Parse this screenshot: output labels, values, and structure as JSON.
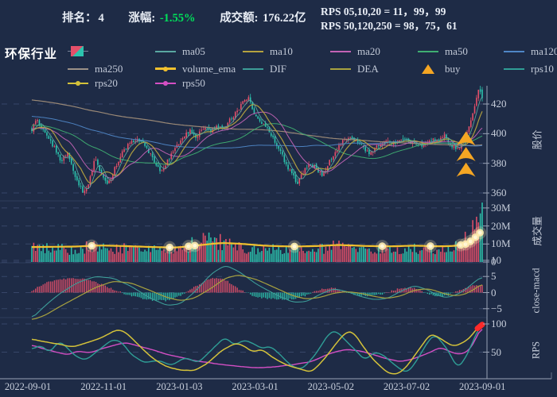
{
  "title": "环保行业",
  "header": {
    "rank_label": "排名：",
    "rank_value": "4",
    "change_label": "涨幅: ",
    "change_value": "-1.55%",
    "change_color": "#00e05a",
    "turnover_label": "成交额: ",
    "turnover_value": "176.22亿",
    "rps_line1": "RPS 05,10,20 = 11，99，99",
    "rps_line2": "RPS 50,120,250 = 98，75，61"
  },
  "legend": {
    "items": [
      {
        "id": "candle",
        "label": "",
        "type": "candle",
        "color": "#e4506a",
        "row": 0,
        "col": 0
      },
      {
        "id": "ma05",
        "label": "ma05",
        "type": "line",
        "color": "#5aa8a2",
        "row": 0,
        "col": 1
      },
      {
        "id": "ma10",
        "label": "ma10",
        "type": "line",
        "color": "#b5a23f",
        "row": 0,
        "col": 2
      },
      {
        "id": "ma20",
        "label": "ma20",
        "type": "line",
        "color": "#c263b5",
        "row": 0,
        "col": 3
      },
      {
        "id": "ma50",
        "label": "ma50",
        "type": "line",
        "color": "#3fae72",
        "row": 0,
        "col": 4
      },
      {
        "id": "ma120",
        "label": "ma120",
        "type": "line",
        "color": "#4f86c6",
        "row": 0,
        "col": 5
      },
      {
        "id": "ma250",
        "label": "ma250",
        "type": "line",
        "color": "#9b9188",
        "row": 1,
        "col": 0
      },
      {
        "id": "volume_ema",
        "label": "volume_ema",
        "type": "line-bold-dot",
        "color": "#f2c12e",
        "row": 1,
        "col": 1
      },
      {
        "id": "DIF",
        "label": "DIF",
        "type": "line",
        "color": "#3d9d98",
        "row": 1,
        "col": 2
      },
      {
        "id": "DEA",
        "label": "DEA",
        "type": "line",
        "color": "#a8a23f",
        "row": 1,
        "col": 3
      },
      {
        "id": "buy",
        "label": "buy",
        "type": "triangle",
        "color": "#f5a623",
        "row": 1,
        "col": 4
      },
      {
        "id": "rps10",
        "label": "rps10",
        "type": "line",
        "color": "#2f9e96",
        "row": 1,
        "col": 5
      },
      {
        "id": "rps20",
        "label": "rps20",
        "type": "line-dot",
        "color": "#d4c23a",
        "row": 2,
        "col": 0
      },
      {
        "id": "rps50",
        "label": "rps50",
        "type": "line-dot",
        "color": "#d44fc4",
        "row": 2,
        "col": 1
      }
    ]
  },
  "chart_data": {
    "type": "candlestick-multi-panel",
    "x_ticks": [
      "2022-09-01",
      "2022-11-01",
      "2023-01-03",
      "2023-03-01",
      "2023-05-02",
      "2023-07-02",
      "2023-09-01"
    ],
    "num_candles": 240,
    "panels": [
      {
        "id": "price",
        "ylabel": "股价",
        "ticks": [
          {
            "label": "420",
            "value": 420
          },
          {
            "label": "400",
            "value": 400
          },
          {
            "label": "380",
            "value": 380
          },
          {
            "label": "360",
            "value": 360
          }
        ]
      },
      {
        "id": "volume",
        "ylabel": "成交量",
        "ticks": [
          {
            "label": "30M",
            "value": 30
          },
          {
            "label": "20M",
            "value": 20
          },
          {
            "label": "10M",
            "value": 10
          },
          {
            "label": "0",
            "value": 0
          }
        ]
      },
      {
        "id": "macd",
        "ylabel": "close-macd",
        "ticks": [
          {
            "label": "10",
            "value": 10
          },
          {
            "label": "5",
            "value": 5
          },
          {
            "label": "0",
            "value": 0
          },
          {
            "label": "−5",
            "value": -5
          }
        ]
      },
      {
        "id": "rps",
        "ylabel": "RPS",
        "ticks": [
          {
            "label": "100",
            "value": 100
          },
          {
            "label": "50",
            "value": 50
          }
        ]
      }
    ],
    "close_keypoints": [
      [
        0,
        403
      ],
      [
        0.012,
        409
      ],
      [
        0.03,
        400
      ],
      [
        0.05,
        391
      ],
      [
        0.065,
        381
      ],
      [
        0.08,
        387
      ],
      [
        0.095,
        373
      ],
      [
        0.115,
        359
      ],
      [
        0.125,
        364
      ],
      [
        0.14,
        383
      ],
      [
        0.155,
        372
      ],
      [
        0.17,
        366
      ],
      [
        0.185,
        377
      ],
      [
        0.2,
        387
      ],
      [
        0.22,
        394
      ],
      [
        0.235,
        397
      ],
      [
        0.25,
        392
      ],
      [
        0.265,
        385
      ],
      [
        0.285,
        374
      ],
      [
        0.3,
        381
      ],
      [
        0.32,
        391
      ],
      [
        0.335,
        397
      ],
      [
        0.35,
        402
      ],
      [
        0.365,
        398
      ],
      [
        0.38,
        404
      ],
      [
        0.395,
        401
      ],
      [
        0.41,
        405
      ],
      [
        0.425,
        403
      ],
      [
        0.44,
        409
      ],
      [
        0.455,
        415
      ],
      [
        0.47,
        421
      ],
      [
        0.48,
        424
      ],
      [
        0.49,
        417
      ],
      [
        0.5,
        411
      ],
      [
        0.52,
        405
      ],
      [
        0.535,
        398
      ],
      [
        0.55,
        389
      ],
      [
        0.565,
        379
      ],
      [
        0.58,
        371
      ],
      [
        0.59,
        367
      ],
      [
        0.6,
        373
      ],
      [
        0.615,
        380
      ],
      [
        0.63,
        377
      ],
      [
        0.645,
        371
      ],
      [
        0.66,
        381
      ],
      [
        0.675,
        389
      ],
      [
        0.69,
        395
      ],
      [
        0.705,
        399
      ],
      [
        0.72,
        395
      ],
      [
        0.735,
        391
      ],
      [
        0.75,
        387
      ],
      [
        0.765,
        391
      ],
      [
        0.78,
        395
      ],
      [
        0.8,
        393
      ],
      [
        0.82,
        397
      ],
      [
        0.84,
        395
      ],
      [
        0.855,
        391
      ],
      [
        0.87,
        393
      ],
      [
        0.885,
        397
      ],
      [
        0.9,
        395
      ],
      [
        0.915,
        399
      ],
      [
        0.93,
        393
      ],
      [
        0.945,
        389
      ],
      [
        0.955,
        393
      ],
      [
        0.965,
        399
      ],
      [
        0.975,
        409
      ],
      [
        0.985,
        421
      ],
      [
        0.993,
        431
      ],
      [
        1,
        424
      ]
    ],
    "volume_keypoints": [
      [
        0,
        8
      ],
      [
        0.05,
        7.5
      ],
      [
        0.1,
        7
      ],
      [
        0.13,
        9
      ],
      [
        0.15,
        8
      ],
      [
        0.2,
        7.5
      ],
      [
        0.25,
        7
      ],
      [
        0.3,
        6.5
      ],
      [
        0.34,
        8
      ],
      [
        0.37,
        12
      ],
      [
        0.4,
        13
      ],
      [
        0.43,
        10
      ],
      [
        0.46,
        8
      ],
      [
        0.5,
        7
      ],
      [
        0.55,
        7.5
      ],
      [
        0.6,
        8
      ],
      [
        0.63,
        7
      ],
      [
        0.66,
        8.5
      ],
      [
        0.68,
        9
      ],
      [
        0.72,
        7.5
      ],
      [
        0.76,
        7
      ],
      [
        0.8,
        8
      ],
      [
        0.84,
        7.5
      ],
      [
        0.87,
        8
      ],
      [
        0.9,
        7
      ],
      [
        0.93,
        8
      ],
      [
        0.95,
        9
      ],
      [
        0.97,
        14
      ],
      [
        0.985,
        22
      ],
      [
        1,
        26
      ]
    ],
    "volume_ema_keypoints": [
      [
        0,
        8.3
      ],
      [
        0.1,
        8.6
      ],
      [
        0.15,
        9.2
      ],
      [
        0.2,
        8.9
      ],
      [
        0.27,
        8.3
      ],
      [
        0.32,
        8
      ],
      [
        0.37,
        9.3
      ],
      [
        0.42,
        10.6
      ],
      [
        0.46,
        10.2
      ],
      [
        0.52,
        9
      ],
      [
        0.58,
        8.6
      ],
      [
        0.64,
        8.9
      ],
      [
        0.68,
        9.5
      ],
      [
        0.74,
        8.9
      ],
      [
        0.8,
        8.7
      ],
      [
        0.85,
        9.1
      ],
      [
        0.9,
        8.7
      ],
      [
        0.94,
        8.9
      ],
      [
        0.965,
        10
      ],
      [
        0.98,
        12.5
      ],
      [
        1,
        17.5
      ]
    ],
    "volume_glow_t": [
      0.133,
      0.306,
      0.348,
      0.362,
      0.583,
      0.778,
      0.885,
      0.952,
      0.963,
      0.974,
      0.985,
      0.995
    ],
    "dif_keypoints": [
      [
        0,
        -8
      ],
      [
        0.03,
        -4
      ],
      [
        0.06,
        -0.5
      ],
      [
        0.1,
        3
      ],
      [
        0.14,
        5
      ],
      [
        0.18,
        4.5
      ],
      [
        0.22,
        2
      ],
      [
        0.26,
        -1.5
      ],
      [
        0.3,
        -4
      ],
      [
        0.33,
        -3.5
      ],
      [
        0.36,
        0
      ],
      [
        0.4,
        6
      ],
      [
        0.43,
        8.5
      ],
      [
        0.46,
        6.5
      ],
      [
        0.5,
        2.5
      ],
      [
        0.54,
        -0.5
      ],
      [
        0.58,
        -3
      ],
      [
        0.61,
        -2.8
      ],
      [
        0.64,
        -0.5
      ],
      [
        0.67,
        1.2
      ],
      [
        0.7,
        0.3
      ],
      [
        0.73,
        -1.2
      ],
      [
        0.76,
        -2.2
      ],
      [
        0.79,
        -1.8
      ],
      [
        0.82,
        0.5
      ],
      [
        0.85,
        2.2
      ],
      [
        0.88,
        0.8
      ],
      [
        0.9,
        -0.8
      ],
      [
        0.92,
        -1.6
      ],
      [
        0.94,
        -0.8
      ],
      [
        0.96,
        0.6
      ],
      [
        0.98,
        3
      ],
      [
        1,
        5
      ]
    ],
    "dea_keypoints": [
      [
        0,
        -8.5
      ],
      [
        0.03,
        -7
      ],
      [
        0.06,
        -4.5
      ],
      [
        0.1,
        -1.5
      ],
      [
        0.14,
        1.5
      ],
      [
        0.18,
        3.5
      ],
      [
        0.22,
        3
      ],
      [
        0.26,
        0.8
      ],
      [
        0.3,
        -1.5
      ],
      [
        0.33,
        -2.5
      ],
      [
        0.36,
        -1.8
      ],
      [
        0.4,
        1.5
      ],
      [
        0.43,
        4.5
      ],
      [
        0.46,
        5.5
      ],
      [
        0.5,
        4
      ],
      [
        0.54,
        1.5
      ],
      [
        0.58,
        -1
      ],
      [
        0.61,
        -2
      ],
      [
        0.64,
        -1.5
      ],
      [
        0.67,
        -0.2
      ],
      [
        0.7,
        0.3
      ],
      [
        0.73,
        -0.2
      ],
      [
        0.76,
        -1.2
      ],
      [
        0.79,
        -1.8
      ],
      [
        0.82,
        -1
      ],
      [
        0.85,
        0.8
      ],
      [
        0.88,
        1.2
      ],
      [
        0.9,
        0.4
      ],
      [
        0.92,
        -0.5
      ],
      [
        0.94,
        -1
      ],
      [
        0.96,
        -0.6
      ],
      [
        0.98,
        0.8
      ],
      [
        1,
        2.8
      ]
    ],
    "rps10_keypoints": [
      [
        0,
        55
      ],
      [
        0.02,
        63
      ],
      [
        0.04,
        48
      ],
      [
        0.06,
        71
      ],
      [
        0.08,
        56
      ],
      [
        0.1,
        41
      ],
      [
        0.12,
        36
      ],
      [
        0.15,
        55
      ],
      [
        0.18,
        73
      ],
      [
        0.2,
        68
      ],
      [
        0.22,
        46
      ],
      [
        0.25,
        31
      ],
      [
        0.28,
        36
      ],
      [
        0.31,
        26
      ],
      [
        0.34,
        41
      ],
      [
        0.37,
        31
      ],
      [
        0.4,
        55
      ],
      [
        0.43,
        77
      ],
      [
        0.45,
        62
      ],
      [
        0.47,
        72
      ],
      [
        0.49,
        66
      ],
      [
        0.51,
        56
      ],
      [
        0.53,
        61
      ],
      [
        0.55,
        46
      ],
      [
        0.575,
        26
      ],
      [
        0.6,
        19
      ],
      [
        0.63,
        46
      ],
      [
        0.66,
        84
      ],
      [
        0.675,
        88
      ],
      [
        0.69,
        76
      ],
      [
        0.715,
        56
      ],
      [
        0.74,
        36
      ],
      [
        0.76,
        50
      ],
      [
        0.78,
        45
      ],
      [
        0.8,
        31
      ],
      [
        0.82,
        18
      ],
      [
        0.835,
        14
      ],
      [
        0.855,
        35
      ],
      [
        0.88,
        70
      ],
      [
        0.895,
        82
      ],
      [
        0.915,
        64
      ],
      [
        0.93,
        45
      ],
      [
        0.945,
        21
      ],
      [
        0.96,
        36
      ],
      [
        0.975,
        60
      ],
      [
        0.99,
        90
      ],
      [
        1,
        99
      ]
    ],
    "rps20_keypoints": [
      [
        0,
        73
      ],
      [
        0.03,
        68
      ],
      [
        0.06,
        64
      ],
      [
        0.09,
        59
      ],
      [
        0.12,
        66
      ],
      [
        0.15,
        74
      ],
      [
        0.19,
        90
      ],
      [
        0.21,
        85
      ],
      [
        0.24,
        60
      ],
      [
        0.27,
        38
      ],
      [
        0.3,
        24
      ],
      [
        0.33,
        18
      ],
      [
        0.36,
        17
      ],
      [
        0.39,
        30
      ],
      [
        0.42,
        52
      ],
      [
        0.45,
        66
      ],
      [
        0.47,
        62
      ],
      [
        0.49,
        50
      ],
      [
        0.51,
        55
      ],
      [
        0.54,
        38
      ],
      [
        0.57,
        26
      ],
      [
        0.6,
        19
      ],
      [
        0.62,
        14
      ],
      [
        0.65,
        38
      ],
      [
        0.68,
        70
      ],
      [
        0.7,
        87
      ],
      [
        0.715,
        85
      ],
      [
        0.74,
        55
      ],
      [
        0.76,
        35
      ],
      [
        0.79,
        13
      ],
      [
        0.81,
        10
      ],
      [
        0.83,
        22
      ],
      [
        0.86,
        55
      ],
      [
        0.885,
        83
      ],
      [
        0.9,
        78
      ],
      [
        0.92,
        68
      ],
      [
        0.935,
        60
      ],
      [
        0.95,
        64
      ],
      [
        0.965,
        70
      ],
      [
        0.98,
        82
      ],
      [
        0.99,
        94
      ],
      [
        1,
        99
      ]
    ],
    "rps50_keypoints": [
      [
        0,
        63
      ],
      [
        0.03,
        55
      ],
      [
        0.06,
        49
      ],
      [
        0.08,
        45
      ],
      [
        0.1,
        52
      ],
      [
        0.13,
        49
      ],
      [
        0.16,
        57
      ],
      [
        0.19,
        64
      ],
      [
        0.21,
        67
      ],
      [
        0.24,
        60
      ],
      [
        0.27,
        54
      ],
      [
        0.3,
        46
      ],
      [
        0.33,
        41
      ],
      [
        0.36,
        35
      ],
      [
        0.39,
        32
      ],
      [
        0.42,
        28
      ],
      [
        0.46,
        25
      ],
      [
        0.5,
        22
      ],
      [
        0.54,
        24
      ],
      [
        0.58,
        28
      ],
      [
        0.62,
        33
      ],
      [
        0.65,
        44
      ],
      [
        0.68,
        52
      ],
      [
        0.7,
        55
      ],
      [
        0.73,
        52
      ],
      [
        0.76,
        45
      ],
      [
        0.79,
        38
      ],
      [
        0.82,
        33
      ],
      [
        0.85,
        39
      ],
      [
        0.88,
        48
      ],
      [
        0.9,
        56
      ],
      [
        0.91,
        58
      ],
      [
        0.93,
        50
      ],
      [
        0.95,
        46
      ],
      [
        0.97,
        52
      ],
      [
        0.985,
        72
      ],
      [
        1,
        98
      ]
    ],
    "buy_markers": {
      "t": 0.964,
      "price_tips": [
        401.5,
        391,
        380.5
      ]
    },
    "rps_end_marker": {
      "t": 1,
      "value": 99,
      "color": "#ff2a2a"
    },
    "colors": {
      "bg": "#1e2b46",
      "up": "#e4506a",
      "down": "#2cc4ae",
      "ma05": "#5aa8a2",
      "ma10": "#b5a23f",
      "ma20": "#c263b5",
      "ma50": "#3fae72",
      "ma120": "#4f86c6",
      "ma250": "#a08d79",
      "volume_ema": "#f2c12e",
      "dif": "#3d9d98",
      "dea": "#a8a23f",
      "rps10": "#2f9e96",
      "rps20": "#d4c23a",
      "rps50": "#d44fc4",
      "buy": "#f5a623",
      "grid": "#51628c",
      "spine": "#99a3b6",
      "tick_text": "#c7cedb",
      "glow": "#ffedb0",
      "marker_red": "#ff2a2a"
    }
  }
}
